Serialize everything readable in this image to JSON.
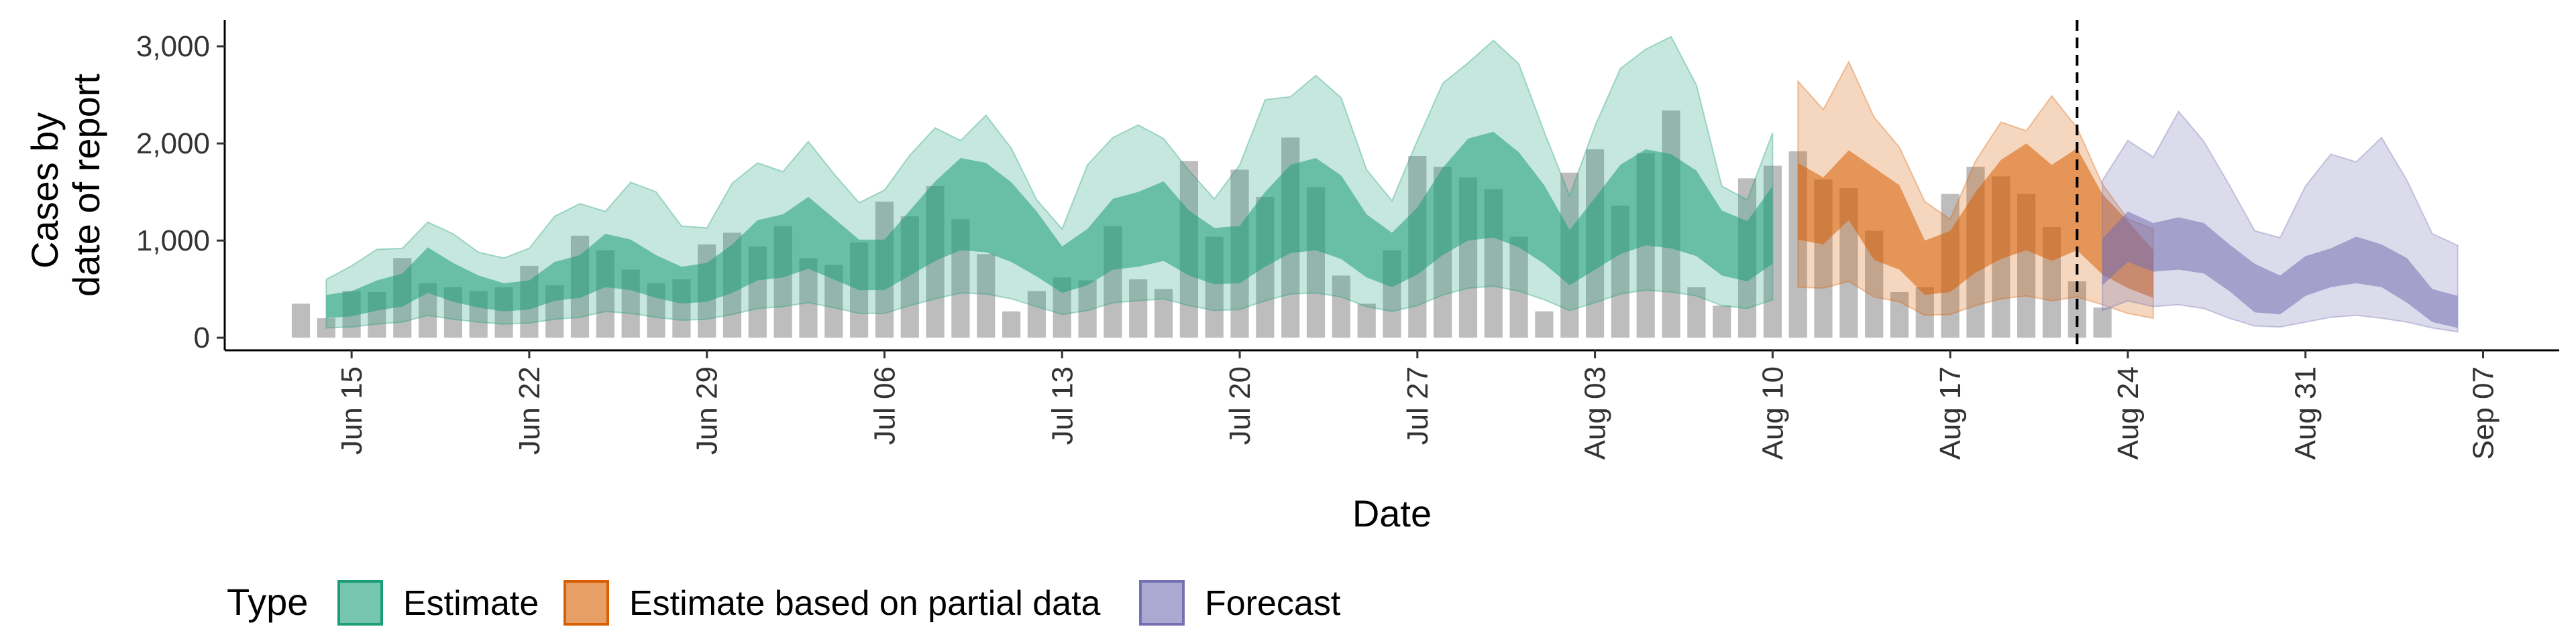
{
  "chart_data": {
    "type": "area",
    "xlabel": "Date",
    "ylabel_lines": [
      "Cases by",
      "date of report"
    ],
    "yticks": [
      0,
      1000,
      2000,
      3000
    ],
    "ytick_labels": [
      "0",
      "1,000",
      "2,000",
      "3,000"
    ],
    "ylim": [
      -130,
      3270
    ],
    "xlim": [
      "2020-06-10",
      "2020-09-10"
    ],
    "xticks": [
      "2020-06-15",
      "2020-06-22",
      "2020-06-29",
      "2020-07-06",
      "2020-07-13",
      "2020-07-20",
      "2020-07-27",
      "2020-08-03",
      "2020-08-10",
      "2020-08-17",
      "2020-08-24",
      "2020-08-31",
      "2020-09-07"
    ],
    "xtick_labels": [
      "Jun 15",
      "Jun 22",
      "Jun 29",
      "Jul 06",
      "Jul 13",
      "Jul 20",
      "Jul 27",
      "Aug 03",
      "Aug 10",
      "Aug 17",
      "Aug 24",
      "Aug 31",
      "Sep 07"
    ],
    "forecast_cutoff": "2020-08-22",
    "colors": {
      "bars": "#bdbdbd",
      "Estimate": "#1b9e77",
      "Estimate based on partial data": "#d95f02",
      "Forecast": "#7570b3"
    },
    "reported_cases": {
      "start": "2020-06-13",
      "values": [
        350,
        200,
        480,
        470,
        820,
        560,
        520,
        480,
        520,
        740,
        540,
        1050,
        900,
        700,
        560,
        600,
        960,
        1080,
        940,
        1150,
        820,
        750,
        980,
        1400,
        1250,
        1560,
        1220,
        860,
        270,
        480,
        620,
        590,
        1150,
        600,
        500,
        1820,
        1040,
        1730,
        1450,
        2060,
        1550,
        640,
        350,
        900,
        1870,
        1760,
        1650,
        1530,
        1040,
        270,
        1700,
        1940,
        1360,
        1900,
        2340,
        520,
        330,
        1640,
        1770,
        1920,
        1630,
        1540,
        1100,
        470,
        520,
        1480,
        1760,
        1660,
        1480,
        1140,
        580,
        310
      ]
    },
    "series": [
      {
        "name": "Estimate",
        "start": "2020-06-14",
        "median": [
          320,
          350,
          430,
          480,
          680,
          560,
          470,
          410,
          430,
          570,
          620,
          780,
          740,
          620,
          530,
          560,
          700,
          880,
          930,
          1060,
          900,
          740,
          740,
          960,
          1180,
          1350,
          1320,
          1170,
          950,
          690,
          820,
          1050,
          1100,
          1180,
          960,
          830,
          840,
          1100,
          1300,
          1350,
          1220,
          930,
          790,
          980,
          1280,
          1500,
          1550,
          1400,
          1150,
          810,
          1050,
          1300,
          1420,
          1380,
          1260,
          960,
          880,
          1140
        ],
        "inner_low": [
          200,
          220,
          280,
          320,
          460,
          370,
          310,
          270,
          290,
          380,
          410,
          520,
          490,
          410,
          350,
          370,
          460,
          590,
          620,
          710,
          600,
          490,
          490,
          640,
          790,
          900,
          880,
          780,
          630,
          460,
          540,
          700,
          730,
          790,
          640,
          550,
          560,
          730,
          870,
          900,
          810,
          620,
          520,
          650,
          850,
          1000,
          1030,
          930,
          760,
          540,
          700,
          860,
          950,
          920,
          840,
          640,
          580,
          760
        ],
        "inner_high": [
          440,
          480,
          590,
          660,
          930,
          770,
          640,
          560,
          590,
          780,
          850,
          1070,
          1010,
          850,
          730,
          770,
          960,
          1210,
          1270,
          1450,
          1230,
          1010,
          1010,
          1310,
          1610,
          1850,
          1800,
          1600,
          1300,
          940,
          1120,
          1430,
          1500,
          1610,
          1310,
          1130,
          1150,
          1500,
          1780,
          1850,
          1670,
          1270,
          1080,
          1340,
          1750,
          2050,
          2120,
          1910,
          1570,
          1110,
          1440,
          1780,
          1940,
          1890,
          1720,
          1310,
          1200,
          1560
        ],
        "outer_low": [
          100,
          110,
          140,
          160,
          230,
          190,
          160,
          140,
          150,
          190,
          210,
          270,
          250,
          210,
          180,
          190,
          240,
          300,
          320,
          360,
          310,
          250,
          250,
          330,
          400,
          460,
          450,
          400,
          320,
          240,
          280,
          360,
          380,
          400,
          330,
          280,
          290,
          380,
          450,
          460,
          420,
          320,
          270,
          330,
          440,
          510,
          530,
          480,
          390,
          280,
          360,
          450,
          490,
          470,
          430,
          330,
          300,
          390
        ],
        "outer_high": [
          600,
          740,
          910,
          920,
          1190,
          1070,
          880,
          820,
          920,
          1250,
          1380,
          1300,
          1600,
          1500,
          1150,
          1130,
          1590,
          1800,
          1710,
          2020,
          1690,
          1390,
          1520,
          1880,
          2160,
          2030,
          2290,
          1950,
          1420,
          1120,
          1780,
          2060,
          2190,
          2050,
          1720,
          1430,
          1780,
          2450,
          2480,
          2700,
          2470,
          1730,
          1410,
          2030,
          2620,
          2830,
          3060,
          2820,
          2120,
          1460,
          2180,
          2770,
          2970,
          3100,
          2600,
          1560,
          1420,
          2110
        ]
      },
      {
        "name": "Estimate based on partial data",
        "start": "2020-08-11",
        "median": [
          1700,
          1560,
          1900,
          1330,
          1200,
          700,
          780,
          1090,
          1320,
          1450,
          1300,
          1450,
          1070,
          800,
          650
        ],
        "inner_low": [
          1010,
          960,
          1210,
          800,
          700,
          440,
          470,
          670,
          810,
          900,
          790,
          900,
          650,
          510,
          410
        ],
        "inner_high": [
          1800,
          1650,
          1930,
          1750,
          1570,
          1000,
          1100,
          1500,
          1830,
          2000,
          1780,
          1950,
          1480,
          1200,
          900
        ],
        "outer_low": [
          520,
          510,
          580,
          420,
          370,
          230,
          240,
          330,
          400,
          430,
          380,
          420,
          340,
          250,
          200
        ],
        "outer_high": [
          2640,
          2350,
          2840,
          2270,
          1960,
          1400,
          1220,
          1820,
          2220,
          2130,
          2490,
          2160,
          1580,
          1220,
          1120
        ]
      },
      {
        "name": "Forecast",
        "start": "2020-08-23",
        "median": [
          800,
          1050,
          950,
          1000,
          950,
          700,
          500,
          450,
          600,
          700,
          850,
          750,
          600,
          400,
          300
        ],
        "inner_low": [
          540,
          780,
          680,
          700,
          660,
          480,
          260,
          240,
          430,
          520,
          560,
          520,
          360,
          160,
          100
        ],
        "inner_high": [
          1020,
          1300,
          1180,
          1240,
          1180,
          960,
          760,
          640,
          840,
          920,
          1040,
          960,
          820,
          500,
          430
        ],
        "outer_low": [
          280,
          380,
          320,
          340,
          300,
          200,
          120,
          110,
          160,
          210,
          230,
          200,
          160,
          100,
          60
        ],
        "outer_high": [
          1620,
          2030,
          1860,
          2330,
          2020,
          1570,
          1100,
          1030,
          1560,
          1890,
          1810,
          2060,
          1620,
          1070,
          950
        ]
      }
    ],
    "legend": {
      "title": "Type",
      "position": "bottom",
      "items": [
        "Estimate",
        "Estimate based on partial data",
        "Forecast"
      ]
    }
  }
}
